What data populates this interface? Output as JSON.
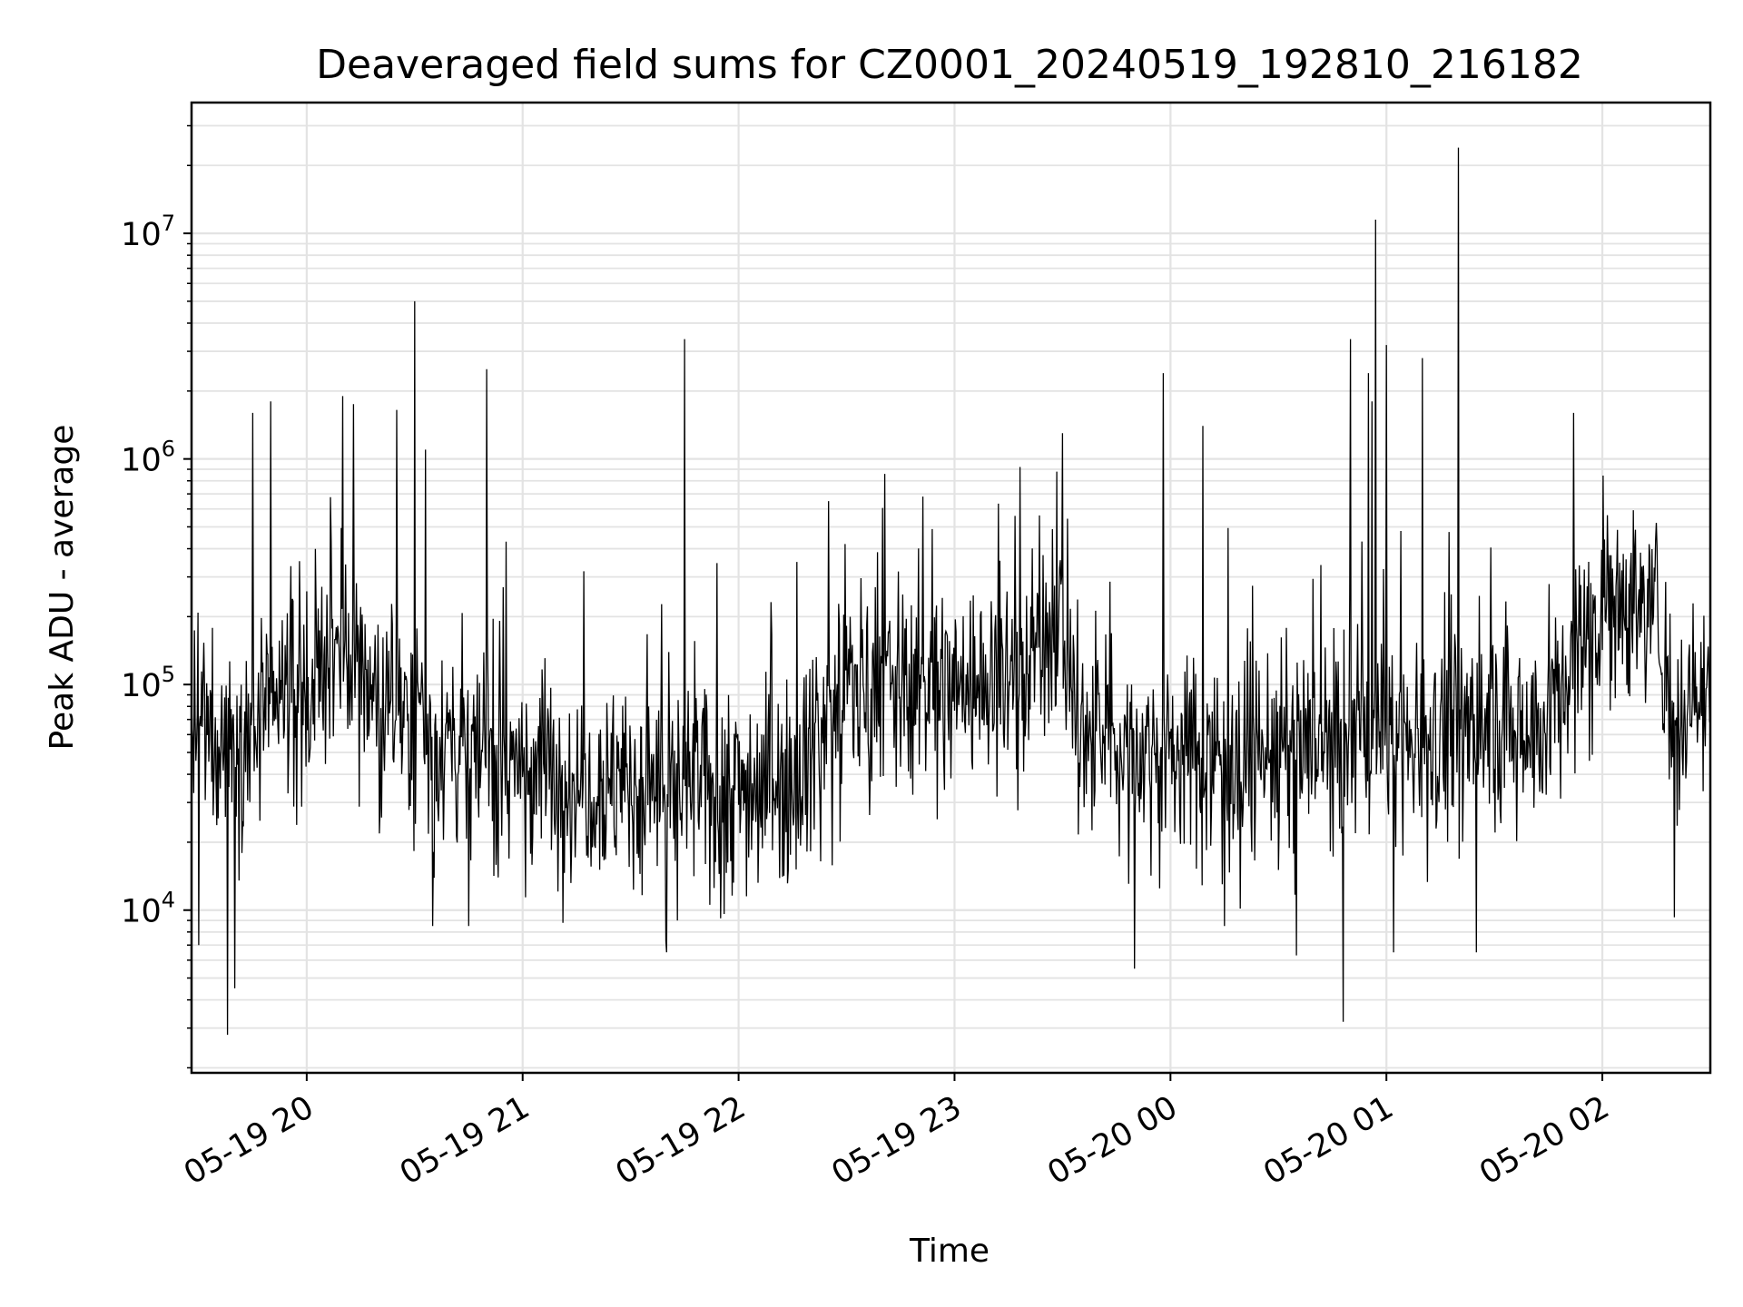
{
  "chart_data": {
    "type": "line",
    "title": "Deaveraged field sums for CZ0001_20240519_192810_216182",
    "xlabel": "Time",
    "ylabel": "Peak ADU - average",
    "yscale": "log",
    "ylim": [
      1900,
      38000000
    ],
    "xlim": [
      "05-19 19:28",
      "05-20 02:30"
    ],
    "grid": true,
    "line_color": "#000000",
    "x_ticks": [
      {
        "label": "05-19 20",
        "t": "05-19 20:00"
      },
      {
        "label": "05-19 21",
        "t": "05-19 21:00"
      },
      {
        "label": "05-19 22",
        "t": "05-19 22:00"
      },
      {
        "label": "05-19 23",
        "t": "05-19 23:00"
      },
      {
        "label": "05-20 00",
        "t": "05-20 00:00"
      },
      {
        "label": "05-20 01",
        "t": "05-20 01:00"
      },
      {
        "label": "05-20 02",
        "t": "05-20 02:00"
      }
    ],
    "y_ticks": [
      {
        "base": "10",
        "exp": "4",
        "value": 10000
      },
      {
        "base": "10",
        "exp": "5",
        "value": 100000
      },
      {
        "base": "10",
        "exp": "6",
        "value": 1000000
      },
      {
        "base": "10",
        "exp": "7",
        "value": 10000000
      }
    ],
    "baseline": [
      [
        "05-19 19:28",
        60000
      ],
      [
        "05-19 19:45",
        60000
      ],
      [
        "05-19 20:00",
        110000
      ],
      [
        "05-19 20:15",
        120000
      ],
      [
        "05-19 20:30",
        70000
      ],
      [
        "05-19 20:45",
        50000
      ],
      [
        "05-19 21:00",
        45000
      ],
      [
        "05-19 21:30",
        35000
      ],
      [
        "05-19 22:00",
        35000
      ],
      [
        "05-19 22:15",
        40000
      ],
      [
        "05-19 22:30",
        100000
      ],
      [
        "05-19 23:00",
        100000
      ],
      [
        "05-19 23:15",
        110000
      ],
      [
        "05-19 23:30",
        200000
      ],
      [
        "05-19 23:35",
        60000
      ],
      [
        "05-20 00:00",
        50000
      ],
      [
        "05-20 00:30",
        50000
      ],
      [
        "05-20 01:00",
        60000
      ],
      [
        "05-20 01:45",
        70000
      ],
      [
        "05-20 02:00",
        250000
      ],
      [
        "05-20 02:15",
        220000
      ],
      [
        "05-20 02:20",
        70000
      ],
      [
        "05-20 02:30",
        100000
      ]
    ],
    "spikes": [
      [
        "05-19 19:45",
        1600000
      ],
      [
        "05-19 19:50",
        1800000
      ],
      [
        "05-19 20:10",
        1900000
      ],
      [
        "05-19 20:13",
        1750000
      ],
      [
        "05-19 20:25",
        1650000
      ],
      [
        "05-19 20:30",
        5000000
      ],
      [
        "05-19 20:33",
        1100000
      ],
      [
        "05-19 20:50",
        2500000
      ],
      [
        "05-19 21:45",
        3400000
      ],
      [
        "05-19 22:25",
        650000
      ],
      [
        "05-19 23:30",
        1300000
      ],
      [
        "05-19 23:58",
        2400000
      ],
      [
        "05-20 00:09",
        1400000
      ],
      [
        "05-20 00:50",
        3400000
      ],
      [
        "05-20 00:55",
        2400000
      ],
      [
        "05-20 00:56",
        1800000
      ],
      [
        "05-20 00:57",
        11500000
      ],
      [
        "05-20 01:00",
        3200000
      ],
      [
        "05-20 01:10",
        2800000
      ],
      [
        "05-20 01:20",
        24000000
      ],
      [
        "05-20 01:52",
        1600000
      ]
    ],
    "dips": [
      [
        "05-19 19:30",
        7000
      ],
      [
        "05-19 19:38",
        2800
      ],
      [
        "05-19 19:40",
        4500
      ],
      [
        "05-19 20:35",
        8500
      ],
      [
        "05-19 20:45",
        8500
      ],
      [
        "05-19 21:40",
        6500
      ],
      [
        "05-19 21:43",
        9000
      ],
      [
        "05-19 23:50",
        5500
      ],
      [
        "05-20 00:15",
        8500
      ],
      [
        "05-20 00:35",
        6300
      ],
      [
        "05-20 00:48",
        3200
      ],
      [
        "05-20 01:02",
        6500
      ],
      [
        "05-20 01:25",
        6500
      ],
      [
        "05-20 02:20",
        9300
      ]
    ]
  }
}
